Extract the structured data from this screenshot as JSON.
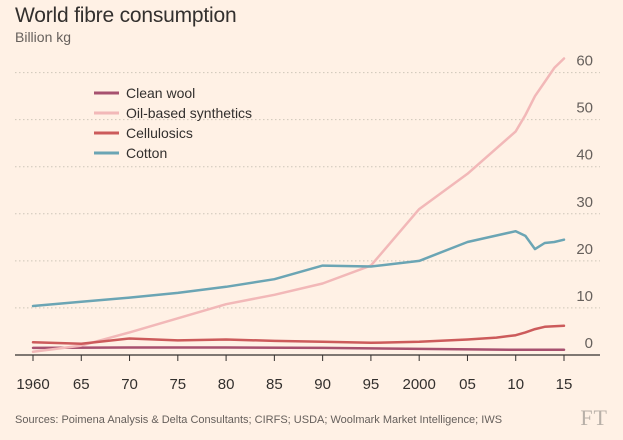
{
  "header": {
    "title": "World fibre consumption",
    "subtitle": "Billion kg"
  },
  "footer": {
    "source": "Sources: Poimena Analysis & Delta Consultants; CIRFS; USDA; Woolmark Market Intelligence; IWS",
    "logo": "FT"
  },
  "chart_data": {
    "type": "line",
    "title": "World fibre consumption",
    "ylabel": "Billion kg",
    "xlim": [
      1960,
      2015
    ],
    "ylim": [
      0,
      60
    ],
    "x_ticks": [
      1960,
      1965,
      1970,
      1975,
      1980,
      1985,
      1990,
      1995,
      2000,
      2005,
      2010,
      2015
    ],
    "x_tick_labels": [
      "1960",
      "65",
      "70",
      "75",
      "80",
      "85",
      "90",
      "95",
      "2000",
      "05",
      "10",
      "15"
    ],
    "y_ticks": [
      0,
      10,
      20,
      30,
      40,
      50,
      60
    ],
    "y_tick_labels": [
      "0",
      "10",
      "20",
      "30",
      "40",
      "50",
      "60"
    ],
    "y_axis_side": "right",
    "grid": "horizontal dotted",
    "legend_position": "top-left",
    "series": [
      {
        "name": "Clean wool",
        "color": "#a7516f",
        "x": [
          1960,
          1970,
          1980,
          1990,
          2000,
          2010,
          2015
        ],
        "y": [
          1.5,
          1.6,
          1.6,
          1.5,
          1.3,
          1.1,
          1.1
        ]
      },
      {
        "name": "Oil-based synthetics",
        "color": "#f2b8b8",
        "x": [
          1960,
          1965,
          1970,
          1975,
          1980,
          1985,
          1990,
          1995,
          2000,
          2005,
          2010,
          2011,
          2012,
          2013,
          2014,
          2015
        ],
        "y": [
          0.7,
          2.0,
          4.8,
          7.8,
          10.8,
          12.8,
          15.2,
          19.0,
          31.0,
          38.5,
          47.5,
          51.0,
          55.0,
          58.0,
          61.0,
          63.0
        ]
      },
      {
        "name": "Cellulosics",
        "color": "#cc5b5b",
        "x": [
          1960,
          1965,
          1970,
          1975,
          1980,
          1985,
          1990,
          1995,
          2000,
          2005,
          2008,
          2010,
          2011,
          2012,
          2013,
          2014,
          2015
        ],
        "y": [
          2.7,
          2.4,
          3.5,
          3.1,
          3.3,
          3.0,
          2.8,
          2.6,
          2.8,
          3.3,
          3.7,
          4.2,
          4.8,
          5.5,
          6.0,
          6.1,
          6.2
        ]
      },
      {
        "name": "Cotton",
        "color": "#6ba5b4",
        "x": [
          1960,
          1965,
          1970,
          1975,
          1980,
          1985,
          1990,
          1995,
          2000,
          2005,
          2010,
          2011,
          2012,
          2013,
          2014,
          2015
        ],
        "y": [
          10.4,
          11.3,
          12.2,
          13.2,
          14.5,
          16.1,
          19.0,
          18.8,
          20.0,
          24.0,
          26.3,
          25.3,
          22.5,
          23.8,
          24.0,
          24.5
        ]
      }
    ]
  }
}
